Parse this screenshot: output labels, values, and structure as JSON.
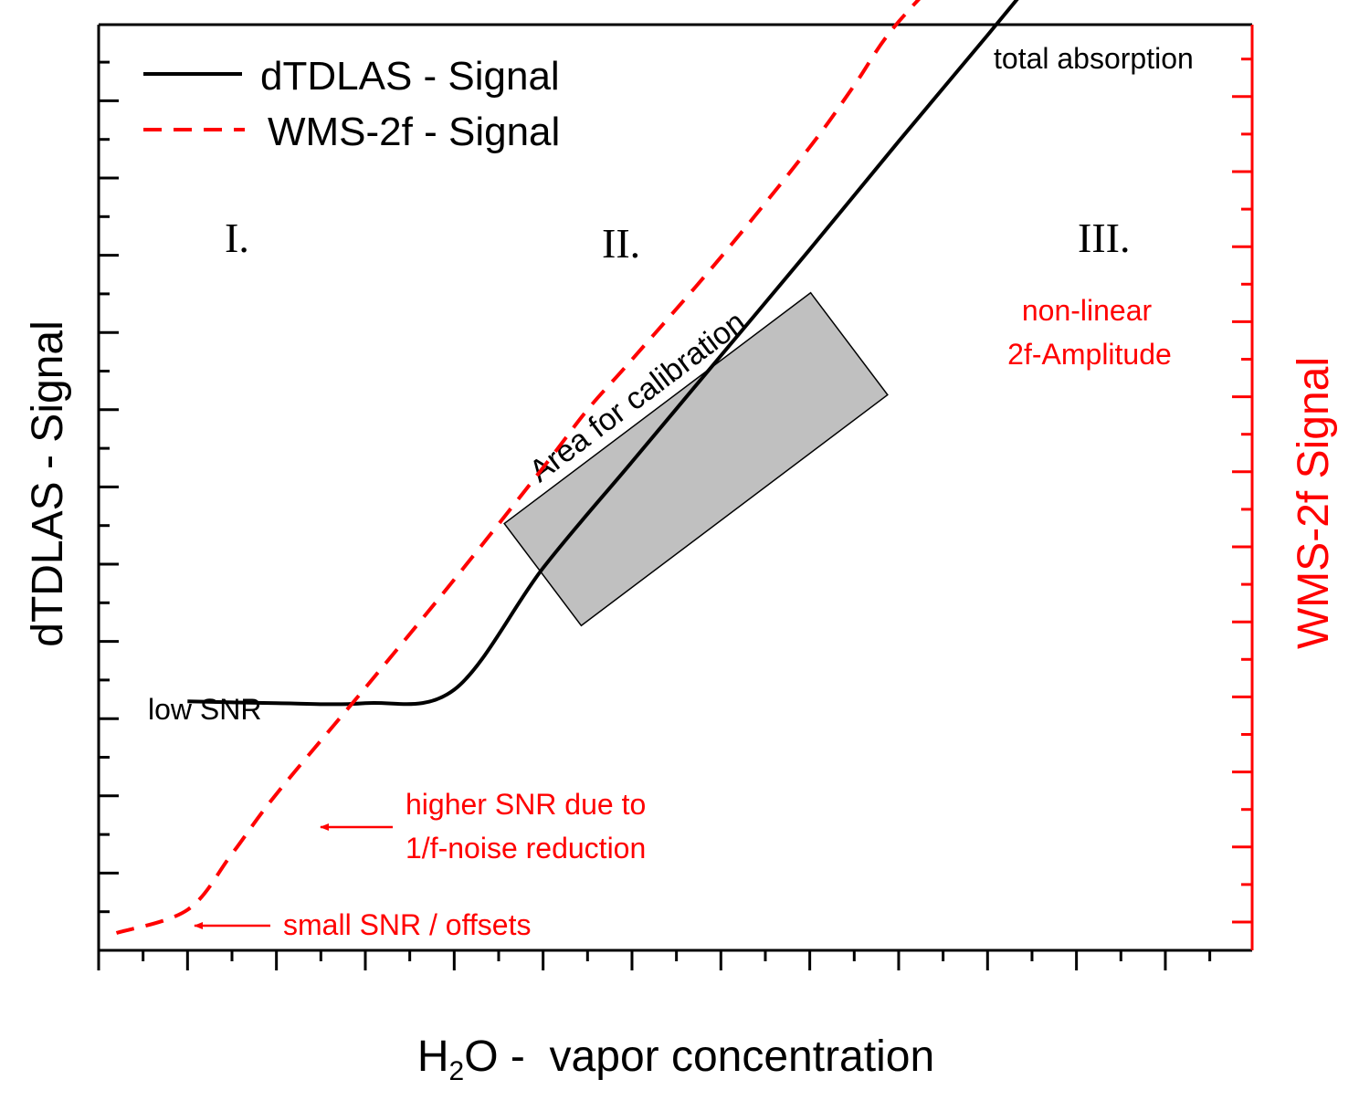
{
  "chart_data": {
    "type": "line",
    "xlabel": {
      "prefix": "H",
      "subscript": "2",
      "suffix": "O -  vapor concentration"
    },
    "ylabel_left": "dTDLAS - Signal",
    "ylabel_right": "WMS-2f Signal",
    "axis_colors": {
      "left": "#000000",
      "right": "#ff0000"
    },
    "tick_labels_shown": false,
    "grid": false,
    "legend_position": "top-left",
    "series": [
      {
        "name": "dTDLAS - Signal",
        "axis": "left",
        "color": "#000000",
        "dash": "solid",
        "x": [
          1.0,
          2.0,
          3.0,
          4.0,
          5.0,
          6.0,
          7.0,
          8.0,
          9.0,
          10.0,
          11.0,
          11.3,
          11.8,
          12.0
        ],
        "y": [
          6.45,
          6.4,
          6.4,
          6.75,
          9.9,
          12.65,
          15.4,
          18.15,
          20.95,
          23.7,
          26.5,
          27.32,
          27.45,
          27.45
        ]
      },
      {
        "name": "WMS-2f - Signal",
        "axis": "right",
        "color": "#ff0000",
        "dash": "dashed",
        "x": [
          0.2,
          1.0,
          1.5,
          2.0,
          3.0,
          4.0,
          5.0,
          5.5,
          6.0,
          7.0,
          8.0,
          8.5,
          9.0,
          10.0,
          10.5,
          10.8
        ],
        "y": [
          0.45,
          1.05,
          2.5,
          4.05,
          6.8,
          9.6,
          12.5,
          14.0,
          15.3,
          17.95,
          20.8,
          22.4,
          24.05,
          26.4,
          27.0,
          27.2
        ]
      }
    ],
    "calibration_box_label": "Area for calibration",
    "annotations": {
      "regions": [
        "I.",
        "II.",
        "III."
      ],
      "total_absorption": "total absorption",
      "low_snr": "low SNR",
      "nonlinear_line1": "non-linear",
      "nonlinear_line2": "2f-Amplitude",
      "higher_snr_line1": "higher SNR due to",
      "higher_snr_line2": "1/f-noise reduction",
      "small_snr": "small SNR / offsets"
    }
  }
}
